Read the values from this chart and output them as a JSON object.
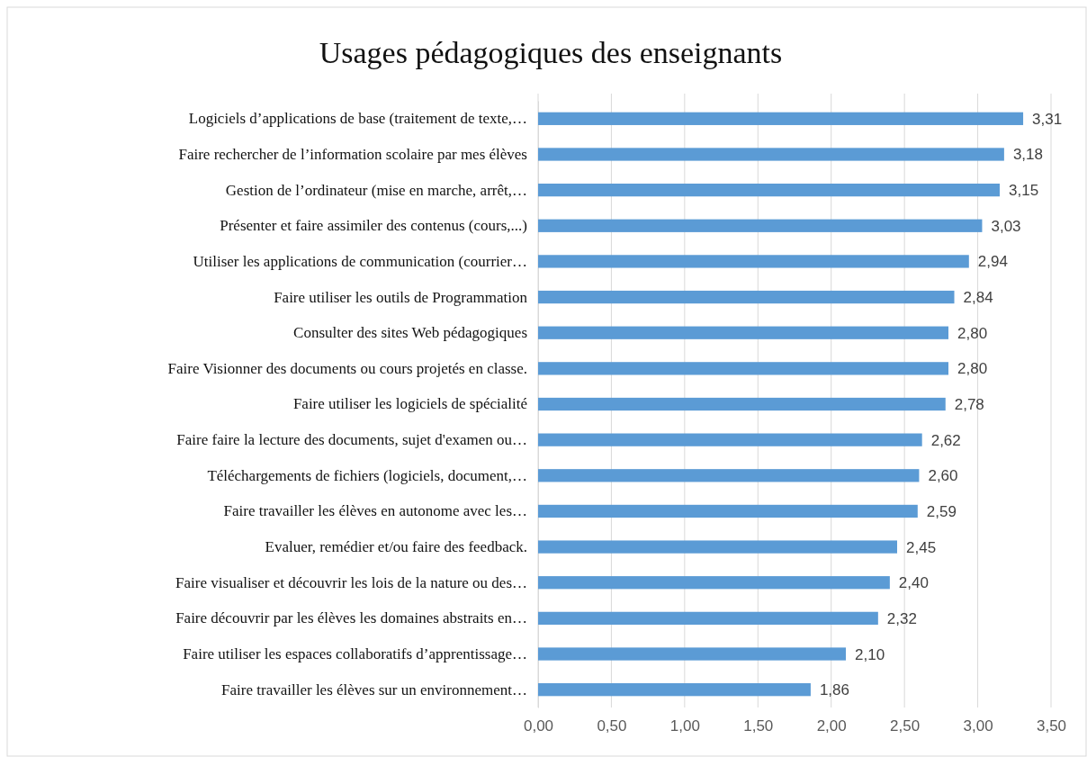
{
  "chart_data": {
    "type": "bar",
    "orientation": "horizontal",
    "title": "Usages pédagogiques des enseignants",
    "categories": [
      "Logiciels d’applications de base (traitement de texte,…",
      "Faire rechercher de l’information scolaire par mes élèves",
      "Gestion de l’ordinateur (mise en marche, arrêt,…",
      "Présenter et faire assimiler des contenus (cours,...)",
      "Utiliser les applications de communication (courrier…",
      "Faire utiliser les outils de Programmation",
      "Consulter des sites Web pédagogiques",
      "Faire Visionner des documents ou cours projetés en classe.",
      "Faire utiliser les logiciels de spécialité",
      "Faire faire la lecture des documents, sujet d'examen ou…",
      "Téléchargements de fichiers (logiciels, document,…",
      "Faire travailler les élèves en autonome avec les…",
      "Evaluer, remédier et/ou faire des feedback.",
      "Faire visualiser et découvrir les lois de la nature ou des…",
      "Faire découvrir par les élèves les domaines abstraits en…",
      "Faire utiliser les espaces collaboratifs d’apprentissage…",
      "Faire travailler les élèves sur un environnement…"
    ],
    "values": [
      3.31,
      3.18,
      3.15,
      3.03,
      2.94,
      2.84,
      2.8,
      2.8,
      2.78,
      2.62,
      2.6,
      2.59,
      2.45,
      2.4,
      2.32,
      2.1,
      1.86
    ],
    "value_labels": [
      "3,31",
      "3,18",
      "3,15",
      "3,03",
      "2,94",
      "2,84",
      "2,80",
      "2,80",
      "2,78",
      "2,62",
      "2,60",
      "2,59",
      "2,45",
      "2,40",
      "2,32",
      "2,10",
      "1,86"
    ],
    "color": "#5b9bd5",
    "xlim": [
      0,
      3.5
    ],
    "xticks": [
      {
        "value": 0,
        "label": "0,00"
      },
      {
        "value": 0.5,
        "label": "0,50"
      },
      {
        "value": 1,
        "label": "1,00"
      },
      {
        "value": 1.5,
        "label": "1,50"
      },
      {
        "value": 2,
        "label": "2,00"
      },
      {
        "value": 2.5,
        "label": "2,50"
      },
      {
        "value": 3,
        "label": "3,00"
      },
      {
        "value": 3.5,
        "label": "3,50"
      }
    ],
    "grid": "x"
  }
}
